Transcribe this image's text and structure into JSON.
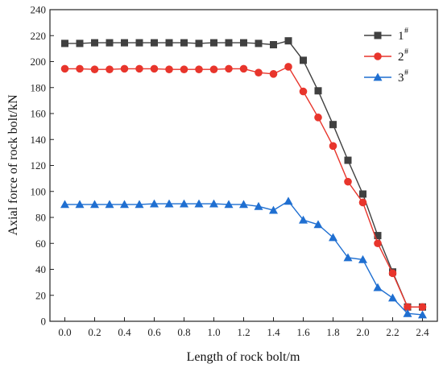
{
  "chart_data": {
    "type": "line",
    "title": "",
    "xlabel": "Length of rock bolt/m",
    "ylabel": "Axial force of rock bolt/kN",
    "xlim": [
      -0.1,
      2.5
    ],
    "ylim": [
      0,
      240
    ],
    "xticks": [
      0.0,
      0.2,
      0.4,
      0.6,
      0.8,
      1.0,
      1.2,
      1.4,
      1.6,
      1.8,
      2.0,
      2.2,
      2.4
    ],
    "xtick_labels": [
      "0.0",
      "0.2",
      "0.4",
      "0.6",
      "0.8",
      "1.0",
      "1.2",
      "1.4",
      "1.6",
      "1.8",
      "2.0",
      "2.2",
      "2.4"
    ],
    "yticks": [
      0,
      20,
      40,
      60,
      80,
      100,
      120,
      140,
      160,
      180,
      200,
      220,
      240
    ],
    "ytick_labels": [
      "0",
      "20",
      "40",
      "60",
      "80",
      "100",
      "120",
      "140",
      "160",
      "180",
      "200",
      "220",
      "240"
    ],
    "grid": false,
    "legend_position": "top-right",
    "x": [
      0.0,
      0.1,
      0.2,
      0.3,
      0.4,
      0.5,
      0.6,
      0.7,
      0.8,
      0.9,
      1.0,
      1.1,
      1.2,
      1.3,
      1.4,
      1.5,
      1.6,
      1.7,
      1.8,
      1.9,
      2.0,
      2.1,
      2.2,
      2.3,
      2.4
    ],
    "series": [
      {
        "name": "1",
        "name_superscript": "#",
        "color": "#404040",
        "marker": "square",
        "values": [
          214,
          214,
          214.5,
          214.5,
          214.5,
          214.5,
          214.5,
          214.5,
          214.5,
          214,
          214.5,
          214.5,
          214.5,
          214,
          213,
          216,
          201,
          177.5,
          151.5,
          124,
          98,
          66,
          38,
          11,
          11
        ]
      },
      {
        "name": "2",
        "name_superscript": "#",
        "color": "#e8352c",
        "marker": "circle",
        "values": [
          194.5,
          194.5,
          194,
          194,
          194.5,
          194.5,
          194.5,
          194,
          194,
          194,
          194,
          194.5,
          194.5,
          191.5,
          190.5,
          196,
          177,
          157,
          135,
          107.5,
          91.5,
          60,
          37,
          11,
          11
        ]
      },
      {
        "name": "3",
        "name_superscript": "#",
        "color": "#1f6fd1",
        "marker": "triangle",
        "values": [
          90,
          90,
          90,
          90,
          90,
          90,
          90.5,
          90.5,
          90.5,
          90.5,
          90.5,
          90,
          90,
          88.5,
          85.5,
          92.5,
          78,
          74.5,
          64.5,
          49,
          47.5,
          26,
          18,
          6,
          5
        ]
      }
    ]
  }
}
